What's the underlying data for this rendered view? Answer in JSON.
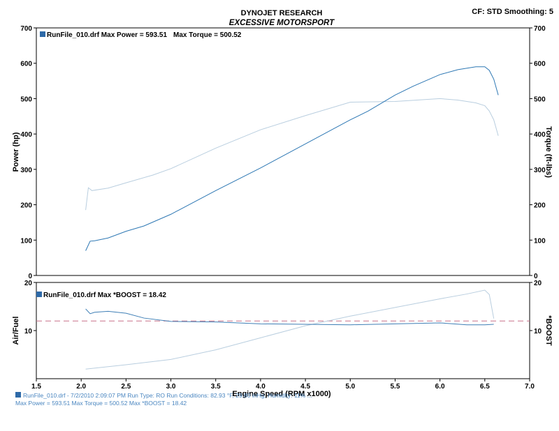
{
  "header": {
    "company": "DYNOJET RESEARCH",
    "shop": "EXCESSIVE MOTORSPORT",
    "settings": "CF: STD  Smoothing: 5"
  },
  "footer": {
    "line1": "RunFile_010.drf - 7/2/2010 2:09:07 PM  Run Type: RO  Run Conditions: 82.93 °F, 29.80 inHg, Humidity: 11% ...",
    "line2": "Max Power = 593.51  Max Torque = 500.52  Max *BOOST = 18.42"
  },
  "colors": {
    "power": "#2e78b4",
    "torque": "#b9cedf",
    "airfuel": "#3f7fb6",
    "boost": "#b9cedf",
    "ref_line": "#c9728a",
    "frame": "#000000",
    "legend_icon": "#2e6aa8"
  },
  "chart_data": [
    {
      "type": "line",
      "title": "",
      "xlabel": "",
      "ylabel": "Power (hp)",
      "ylabel_right": "Torque (ft-lbs)",
      "xlim": [
        1.5,
        7.0
      ],
      "ylim": [
        0,
        700
      ],
      "ylim_right": [
        0,
        700
      ],
      "y_ticks": [
        "0",
        "100",
        "200",
        "300",
        "400",
        "500",
        "600",
        "700"
      ],
      "grid": false,
      "legend_label": "RunFile_010.drf Max Power = 593.51",
      "legend_label2": "Max Torque = 500.52",
      "legend_position": "top-left",
      "series": [
        {
          "x": [
            2.05,
            2.1,
            2.15,
            2.3,
            2.5,
            2.7,
            3.0,
            3.5,
            4.0,
            4.5,
            5.0,
            5.2,
            5.5,
            5.7,
            6.0,
            6.2,
            6.4,
            6.5,
            6.55,
            6.6,
            6.65
          ],
          "y": [
            70,
            97,
            98,
            106,
            125,
            140,
            173,
            240,
            304,
            372,
            440,
            465,
            510,
            535,
            568,
            582,
            590,
            590,
            580,
            555,
            510
          ]
        },
        {
          "x": [
            2.05,
            2.08,
            2.12,
            2.3,
            2.5,
            2.8,
            3.0,
            3.5,
            4.0,
            4.5,
            5.0,
            5.5,
            6.0,
            6.2,
            6.4,
            6.5,
            6.55,
            6.6,
            6.65
          ],
          "y": [
            185,
            248,
            240,
            247,
            262,
            284,
            302,
            360,
            412,
            452,
            490,
            492,
            500,
            496,
            488,
            480,
            465,
            440,
            395
          ]
        }
      ]
    },
    {
      "type": "line",
      "title": "",
      "xlabel": "Engine Speed (RPM x1000)",
      "ylabel": "Air/Fuel",
      "ylabel_right": "*BOOST",
      "xlim": [
        1.5,
        7.0
      ],
      "x_ticks": [
        "1.5",
        "2.0",
        "2.5",
        "3.0",
        "3.5",
        "4.0",
        "4.5",
        "5.0",
        "5.5",
        "6.0",
        "6.5",
        "7.0"
      ],
      "ylim": [
        0,
        20
      ],
      "ylim_right": [
        0,
        20
      ],
      "y_ticks": [
        "10",
        "20"
      ],
      "y_ticks_right": [
        "10",
        "20"
      ],
      "reference_y": 12,
      "grid": false,
      "legend_label": "RunFile_010.drf Max *BOOST = 18.42",
      "legend_position": "top-left",
      "series": [
        {
          "x": [
            2.05,
            2.1,
            2.15,
            2.3,
            2.5,
            2.7,
            3.0,
            3.5,
            4.0,
            4.5,
            5.0,
            5.5,
            6.0,
            6.3,
            6.5,
            6.6
          ],
          "y": [
            14.5,
            13.5,
            13.8,
            14.0,
            13.6,
            12.6,
            11.9,
            11.8,
            11.4,
            11.3,
            11.2,
            11.4,
            11.6,
            11.2,
            11.2,
            11.3
          ]
        },
        {
          "x": [
            2.05,
            2.5,
            3.0,
            3.5,
            4.0,
            4.5,
            5.0,
            5.5,
            6.0,
            6.3,
            6.5,
            6.55,
            6.6
          ],
          "y": [
            2.0,
            2.9,
            4.0,
            6.0,
            8.5,
            11.0,
            13.0,
            14.8,
            16.6,
            17.6,
            18.4,
            17.5,
            12.5
          ]
        }
      ]
    }
  ]
}
